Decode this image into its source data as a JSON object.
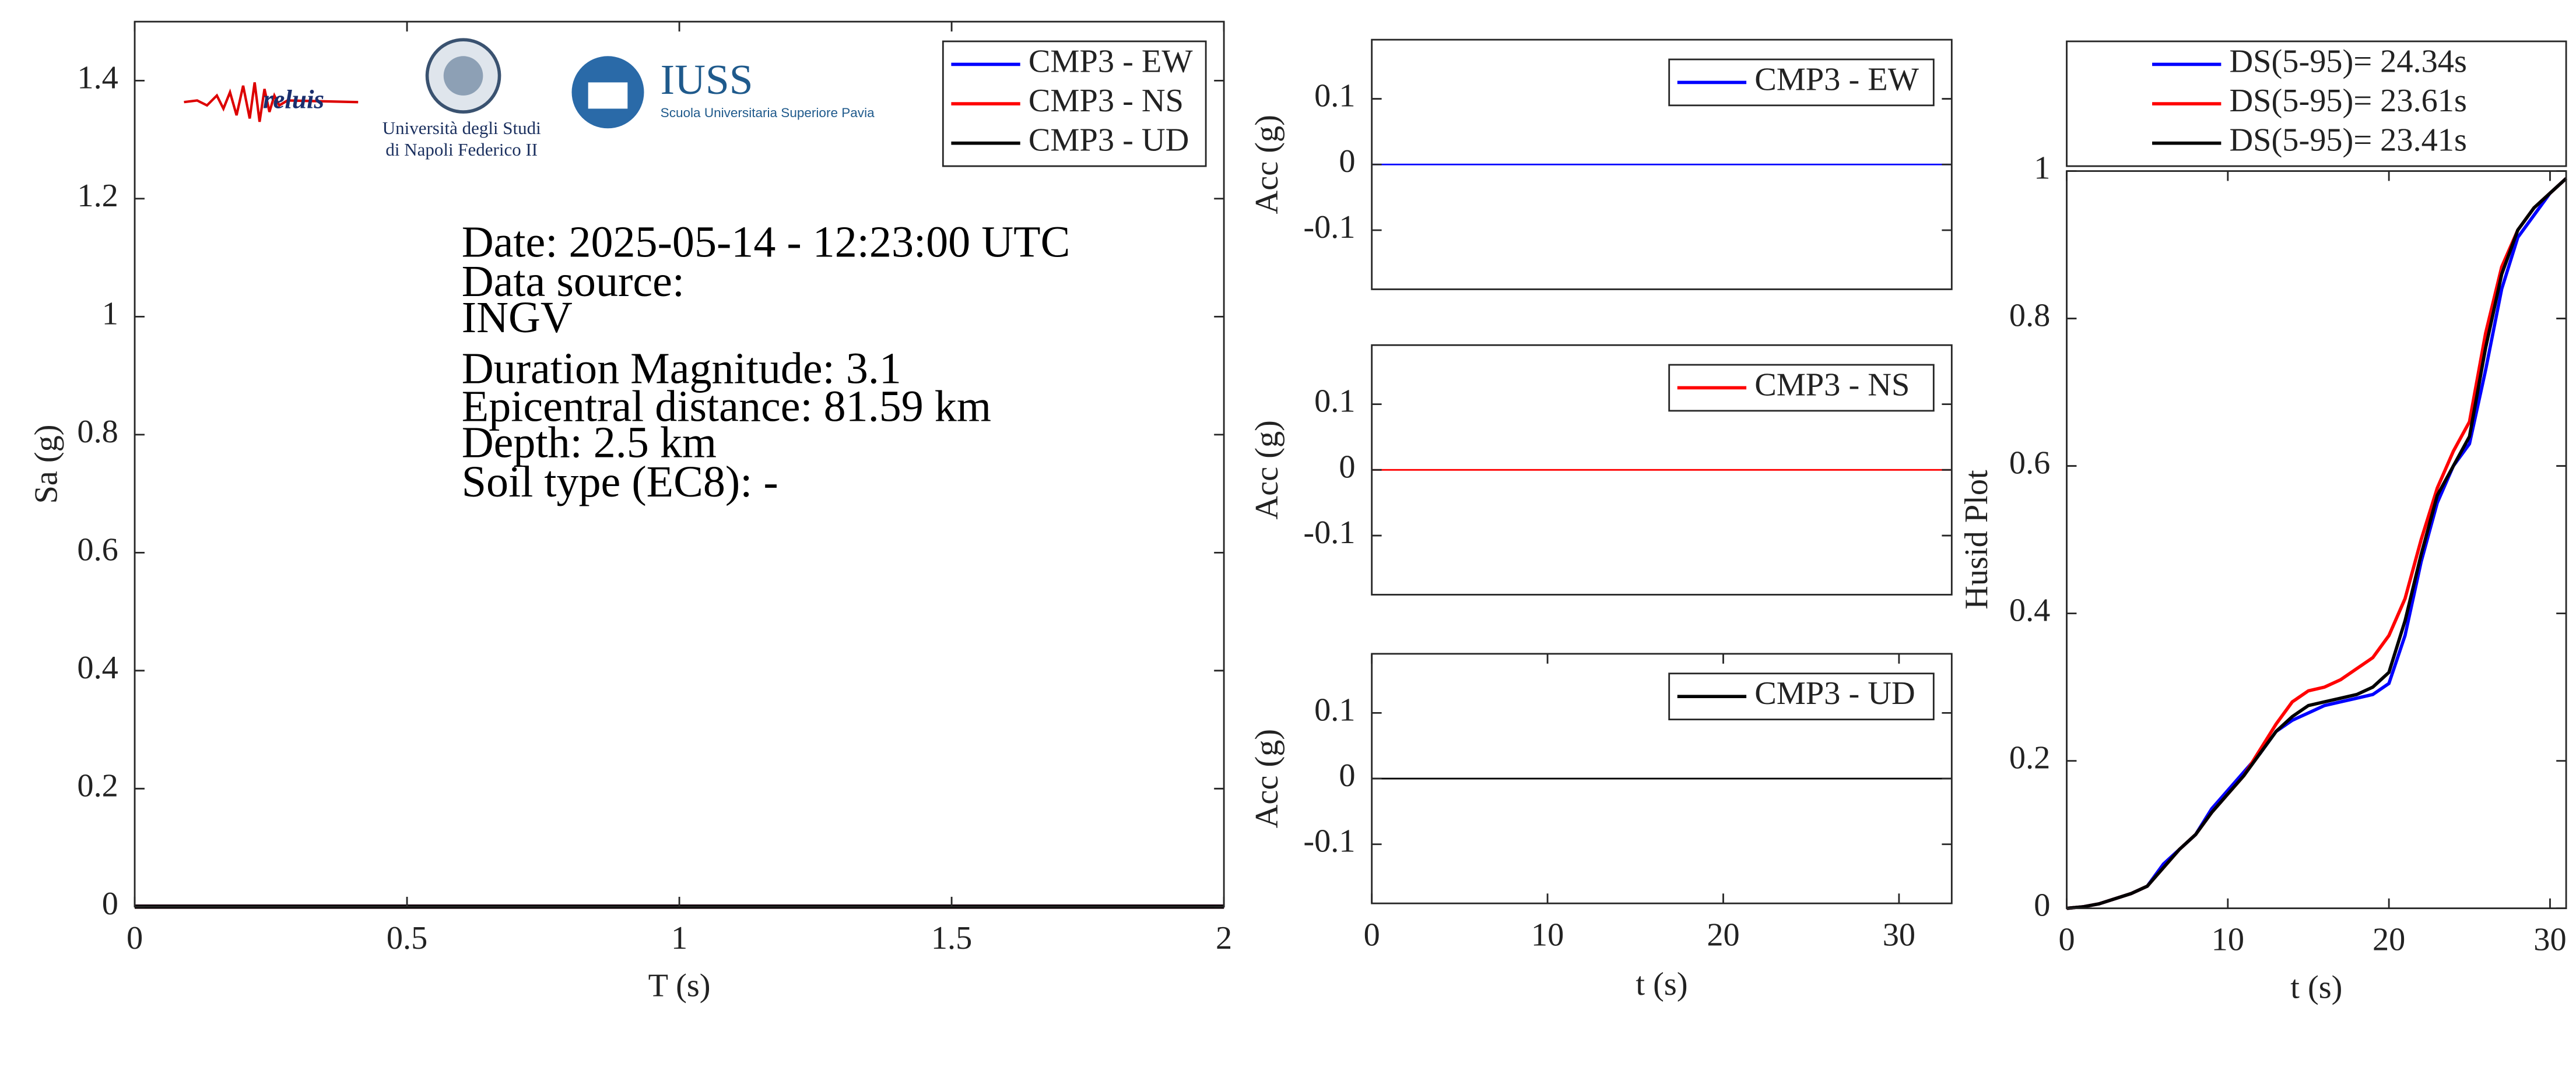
{
  "chart_data": [
    {
      "type": "line",
      "xlabel": "T (s)",
      "ylabel": "Sa (g)",
      "xlim": [
        0,
        2
      ],
      "xticks": [
        0,
        0.5,
        1,
        1.5,
        2
      ],
      "ylim": [
        0,
        1.5
      ],
      "yticks": [
        0,
        0.2,
        0.4,
        0.6,
        0.8,
        1,
        1.2,
        1.4
      ],
      "x": [
        0,
        2
      ],
      "series": [
        {
          "name": "CMP3 - EW",
          "color": "#0000ff",
          "values": [
            0,
            0
          ]
        },
        {
          "name": "CMP3 - NS",
          "color": "#ff0000",
          "values": [
            0,
            0
          ]
        },
        {
          "name": "CMP3 - UD",
          "color": "#000000",
          "values": [
            0,
            0
          ]
        }
      ],
      "legend": "northeast",
      "annotations": [
        "Date: 2025-05-14 - 12:23:00 UTC",
        "Data source:",
        "INGV",
        "Duration Magnitude: 3.1",
        "Epicentral distance: 81.59 km",
        "Depth: 2.5 km",
        "Soil type (EC8): -"
      ],
      "logo_texts": [
        "reluis",
        "Università degli Studi",
        "di Napoli Federico II",
        "IUSS",
        "Scuola Universitaria Superiore Pavia"
      ]
    },
    {
      "type": "line",
      "ylabel": "Acc (g)",
      "xlim": [
        0,
        33
      ],
      "ylim": [
        -0.19,
        0.19
      ],
      "yticks": [
        -0.1,
        0,
        0.1
      ],
      "x": [
        0,
        33
      ],
      "series": [
        {
          "name": "CMP3 - EW",
          "color": "#0000ff",
          "values": [
            0,
            0
          ]
        }
      ],
      "legend": "northeast"
    },
    {
      "type": "line",
      "ylabel": "Acc (g)",
      "xlim": [
        0,
        33
      ],
      "ylim": [
        -0.19,
        0.19
      ],
      "yticks": [
        -0.1,
        0,
        0.1
      ],
      "x": [
        0,
        33
      ],
      "series": [
        {
          "name": "CMP3 - NS",
          "color": "#ff0000",
          "values": [
            0,
            0
          ]
        }
      ],
      "legend": "northeast"
    },
    {
      "type": "line",
      "xlabel": "t (s)",
      "ylabel": "Acc (g)",
      "xlim": [
        0,
        33
      ],
      "xticks": [
        0,
        10,
        20,
        30
      ],
      "ylim": [
        -0.19,
        0.19
      ],
      "yticks": [
        -0.1,
        0,
        0.1
      ],
      "x": [
        0,
        33
      ],
      "series": [
        {
          "name": "CMP3 - UD",
          "color": "#000000",
          "values": [
            0,
            0
          ]
        }
      ],
      "legend": "northeast"
    },
    {
      "type": "line",
      "xlabel": "t (s)",
      "ylabel": "Husid Plot",
      "xlim": [
        0,
        31
      ],
      "xticks": [
        0,
        10,
        20,
        30
      ],
      "ylim": [
        0,
        1
      ],
      "yticks": [
        0,
        0.2,
        0.4,
        0.6,
        0.8,
        1
      ],
      "x": [
        0,
        1,
        2,
        3,
        4,
        5,
        6,
        7,
        8,
        9,
        10,
        11,
        12,
        13,
        14,
        15,
        16,
        17,
        18,
        19,
        20,
        21,
        22,
        23,
        24,
        25,
        26,
        27,
        28,
        29,
        30,
        31
      ],
      "series": [
        {
          "name": "DS(5-95)= 24.34s",
          "color": "#0000ff",
          "values": [
            0,
            0.002,
            0.006,
            0.013,
            0.02,
            0.03,
            0.06,
            0.08,
            0.1,
            0.135,
            0.16,
            0.185,
            0.21,
            0.24,
            0.255,
            0.265,
            0.275,
            0.28,
            0.285,
            0.29,
            0.305,
            0.37,
            0.47,
            0.55,
            0.6,
            0.63,
            0.73,
            0.84,
            0.91,
            0.94,
            0.97,
            0.99
          ]
        },
        {
          "name": "DS(5-95)= 23.61s",
          "color": "#ff0000",
          "values": [
            0,
            0.002,
            0.006,
            0.013,
            0.02,
            0.03,
            0.055,
            0.08,
            0.1,
            0.13,
            0.155,
            0.18,
            0.215,
            0.25,
            0.28,
            0.295,
            0.3,
            0.31,
            0.325,
            0.34,
            0.37,
            0.42,
            0.5,
            0.57,
            0.62,
            0.66,
            0.78,
            0.87,
            0.92,
            0.95,
            0.97,
            0.99
          ]
        },
        {
          "name": "DS(5-95)= 23.41s",
          "color": "#000000",
          "values": [
            0,
            0.002,
            0.006,
            0.013,
            0.02,
            0.03,
            0.055,
            0.08,
            0.1,
            0.13,
            0.155,
            0.18,
            0.21,
            0.24,
            0.26,
            0.275,
            0.28,
            0.285,
            0.29,
            0.3,
            0.32,
            0.39,
            0.48,
            0.56,
            0.6,
            0.64,
            0.76,
            0.86,
            0.92,
            0.95,
            0.97,
            0.99
          ]
        }
      ],
      "legend": "northoutside"
    }
  ]
}
